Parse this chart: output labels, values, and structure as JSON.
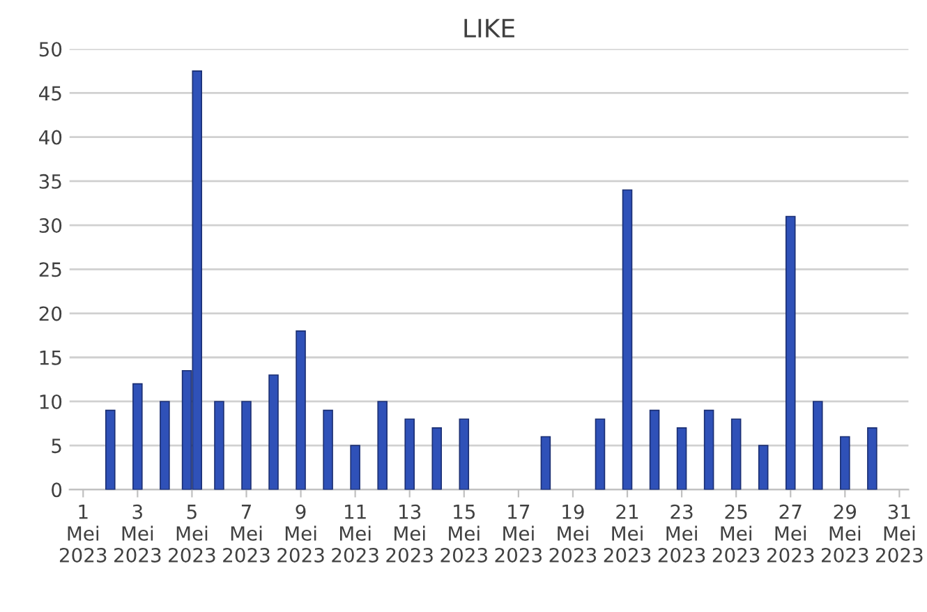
{
  "chart_data": {
    "type": "bar",
    "title": "LIKE",
    "x": [
      "2023-05-02",
      "2023-05-03",
      "2023-05-04",
      "2023-05-04T19:30",
      "2023-05-05T04:30",
      "2023-05-06",
      "2023-05-07",
      "2023-05-08",
      "2023-05-09",
      "2023-05-10",
      "2023-05-11",
      "2023-05-12",
      "2023-05-13",
      "2023-05-14",
      "2023-05-15",
      "2023-05-18",
      "2023-05-20",
      "2023-05-21",
      "2023-05-22",
      "2023-05-23",
      "2023-05-24",
      "2023-05-25",
      "2023-05-26",
      "2023-05-27",
      "2023-05-28",
      "2023-05-29",
      "2023-05-30"
    ],
    "values": [
      9,
      12,
      10,
      13.5,
      47.5,
      10,
      10,
      13,
      18,
      9,
      5,
      10,
      8,
      7,
      8,
      6,
      8,
      34,
      9,
      7,
      9,
      8,
      5,
      31,
      10,
      6,
      7
    ],
    "color": "#2f51b8",
    "xlim": [
      "2023-04-30T12:00",
      "2023-05-31T08:00"
    ],
    "xticks": [
      {
        "value": "2023-05-01",
        "label": "1\nMei\n2023"
      },
      {
        "value": "2023-05-03",
        "label": "3\nMei\n2023"
      },
      {
        "value": "2023-05-05",
        "label": "5\nMei\n2023"
      },
      {
        "value": "2023-05-07",
        "label": "7\nMei\n2023"
      },
      {
        "value": "2023-05-09",
        "label": "9\nMei\n2023"
      },
      {
        "value": "2023-05-11",
        "label": "11\nMei\n2023"
      },
      {
        "value": "2023-05-13",
        "label": "13\nMei\n2023"
      },
      {
        "value": "2023-05-15",
        "label": "15\nMei\n2023"
      },
      {
        "value": "2023-05-17",
        "label": "17\nMei\n2023"
      },
      {
        "value": "2023-05-19",
        "label": "19\nMei\n2023"
      },
      {
        "value": "2023-05-21",
        "label": "21\nMei\n2023"
      },
      {
        "value": "2023-05-23",
        "label": "23\nMei\n2023"
      },
      {
        "value": "2023-05-25",
        "label": "25\nMei\n2023"
      },
      {
        "value": "2023-05-27",
        "label": "27\nMei\n2023"
      },
      {
        "value": "2023-05-29",
        "label": "29\nMei\n2023"
      },
      {
        "value": "2023-05-31",
        "label": "31\nMei\n2023"
      }
    ],
    "ylim": [
      0,
      50
    ],
    "yticks": [
      0,
      5,
      10,
      15,
      20,
      25,
      30,
      35,
      40,
      45,
      50
    ],
    "grid": "y"
  }
}
